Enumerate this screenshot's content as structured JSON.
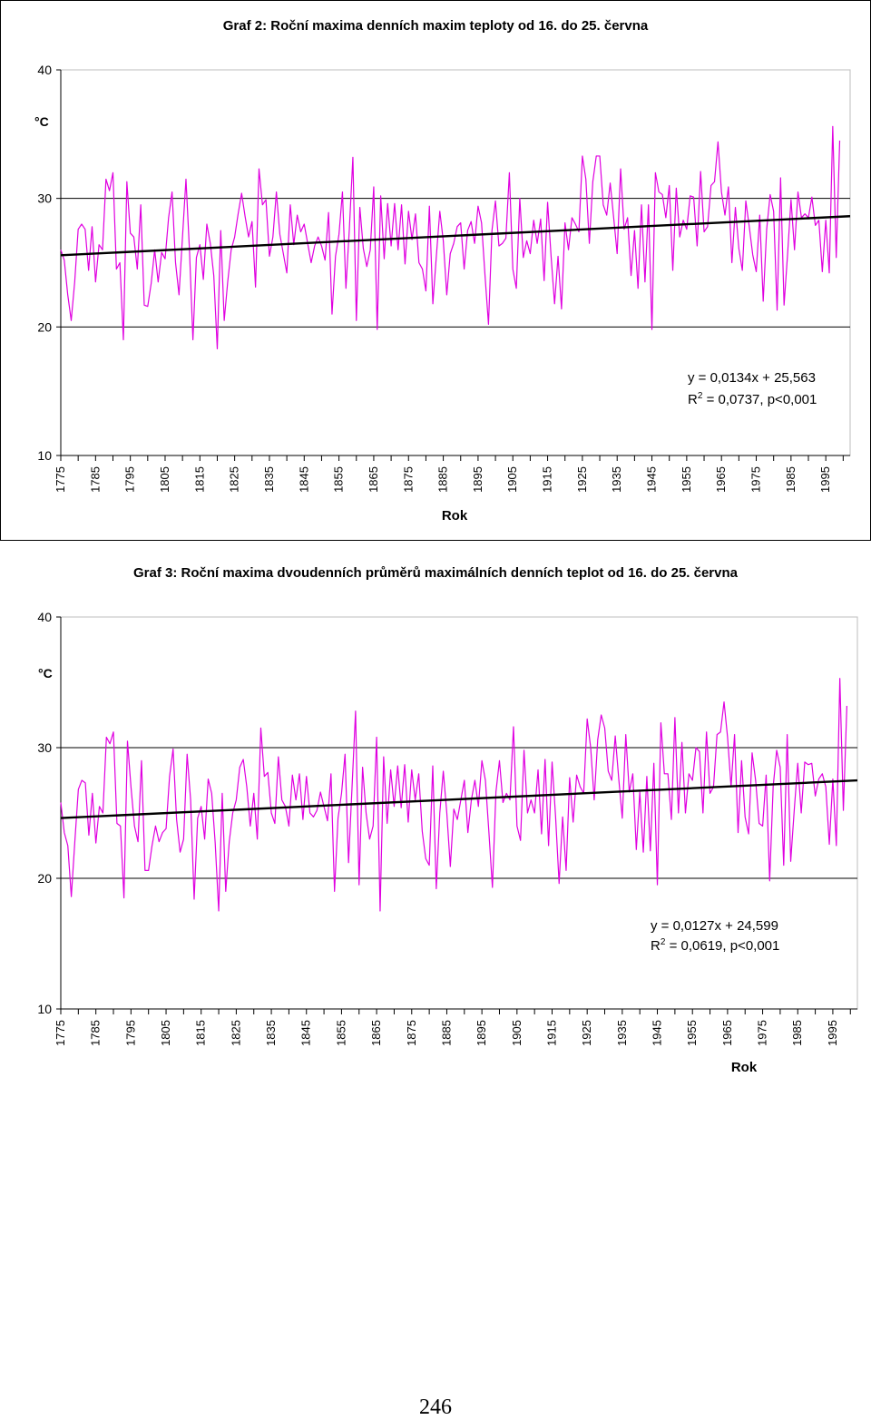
{
  "chart_data": [
    {
      "type": "line",
      "title": "Graf 2: Roční maxima denních maxim teploty od 16. do 25. června",
      "ylabel": "°C",
      "xlabel": "Rok",
      "ylim": [
        10,
        40
      ],
      "xlim": [
        1775,
        2002
      ],
      "yticks": [
        "10",
        "20",
        "30",
        "40"
      ],
      "xticks": [
        "1775",
        "1785",
        "1795",
        "1805",
        "1815",
        "1825",
        "1835",
        "1845",
        "1855",
        "1865",
        "1875",
        "1885",
        "1895",
        "1905",
        "1915",
        "1925",
        "1935",
        "1945",
        "1955",
        "1965",
        "1975",
        "1985",
        "1995"
      ],
      "grid": "horizontal at 20 and 30",
      "series": [
        {
          "color": "#e000e0",
          "x_start": 1775,
          "values": [
            26.0,
            25.2,
            22.5,
            20.5,
            23.5,
            27.6,
            28.0,
            27.6,
            24.4,
            27.8,
            23.5,
            26.4,
            26.0,
            31.5,
            30.6,
            32.0,
            24.5,
            25.0,
            19.0,
            31.3,
            27.3,
            27.0,
            24.5,
            29.5,
            21.7,
            21.6,
            23.4,
            26.0,
            23.5,
            25.8,
            25.3,
            28.5,
            30.5,
            25.0,
            22.5,
            27.0,
            31.5,
            26.0,
            19.0,
            25.4,
            26.4,
            23.7,
            28.0,
            26.5,
            24.0,
            18.3,
            27.5,
            20.5,
            23.5,
            26.0,
            27.0,
            28.8,
            30.4,
            28.6,
            27.0,
            28.2,
            23.1,
            32.3,
            29.5,
            29.9,
            25.5,
            27.0,
            30.5,
            27.2,
            25.7,
            24.2,
            29.5,
            26.4,
            28.7,
            27.4,
            28.0,
            26.5,
            25.0,
            26.3,
            27.0,
            26.3,
            25.2,
            28.9,
            21.0,
            25.5,
            27.2,
            30.5,
            23.0,
            27.7,
            33.2,
            20.5,
            29.3,
            26.1,
            24.7,
            26.0,
            30.9,
            19.8,
            30.2,
            25.3,
            29.6,
            26.3,
            29.6,
            26.0,
            29.5,
            24.9,
            29.0,
            26.8,
            28.8,
            25.0,
            24.5,
            22.8,
            29.4,
            21.8,
            25.5,
            29.0,
            26.7,
            22.5,
            25.7,
            26.5,
            27.8,
            28.1,
            24.5,
            27.5,
            28.2,
            26.5,
            29.4,
            28.1,
            24.0,
            20.2,
            27.5,
            29.8,
            26.3,
            26.5,
            26.9,
            32.0,
            24.5,
            23.0,
            30.0,
            25.4,
            26.7,
            25.7,
            28.3,
            26.5,
            28.4,
            23.6,
            29.7,
            25.5,
            21.8,
            25.5,
            21.4,
            28.1,
            26.0,
            28.5,
            28.0,
            27.4,
            33.3,
            31.5,
            26.5,
            31.3,
            33.3,
            33.3,
            29.5,
            28.7,
            31.2,
            28.5,
            25.7,
            32.3,
            27.6,
            28.5,
            24.0,
            27.5,
            23.0,
            29.5,
            23.5,
            29.5,
            19.8,
            32.0,
            30.5,
            30.3,
            28.5,
            31.0,
            24.4,
            30.8,
            27.0,
            28.3,
            27.6,
            30.2,
            30.1,
            26.3,
            32.1,
            27.4,
            27.8,
            31.0,
            31.3,
            34.4,
            30.5,
            28.7,
            30.9,
            25.0,
            29.3,
            26.1,
            24.4,
            29.8,
            27.8,
            25.6,
            24.3,
            28.7,
            22.0,
            27.6,
            30.3,
            29.0,
            21.3,
            31.6,
            21.7,
            25.6,
            29.9,
            26.0,
            30.5,
            28.5,
            28.8,
            28.5,
            30.1,
            27.9,
            28.3,
            24.3,
            28.3,
            24.2,
            35.6,
            25.4,
            34.5
          ]
        }
      ],
      "trendline": {
        "slope": 0.0134,
        "intercept": 25.563,
        "x_origin": 1774
      },
      "annotation": {
        "equation": "y = 0,0134x + 25,563",
        "r2_label": "R",
        "r2_sup": "2",
        "r2_rest": " = 0,0737, p<0,001"
      }
    },
    {
      "type": "line",
      "title": "Graf 3: Roční maxima dvoudenních průměrů maximálních denních teplot od 16. do 25. června",
      "ylabel": "°C",
      "xlabel": "Rok",
      "ylim": [
        10,
        40
      ],
      "xlim": [
        1775,
        2002
      ],
      "yticks": [
        "10",
        "20",
        "30",
        "40"
      ],
      "xticks": [
        "1775",
        "1785",
        "1795",
        "1805",
        "1815",
        "1825",
        "1835",
        "1845",
        "1855",
        "1865",
        "1875",
        "1885",
        "1895",
        "1905",
        "1915",
        "1925",
        "1935",
        "1945",
        "1955",
        "1965",
        "1975",
        "1985",
        "1995"
      ],
      "grid": "horizontal at 20 and 30",
      "series": [
        {
          "color": "#e000e0",
          "x_start": 1775,
          "values": [
            25.8,
            23.5,
            22.5,
            18.6,
            22.8,
            26.8,
            27.5,
            27.3,
            23.3,
            26.5,
            22.7,
            25.5,
            25.0,
            30.8,
            30.3,
            31.2,
            24.2,
            24.0,
            18.5,
            30.5,
            27.0,
            24.0,
            22.8,
            29.0,
            20.6,
            20.6,
            22.5,
            24.0,
            22.8,
            23.5,
            23.8,
            27.8,
            29.9,
            24.5,
            22.0,
            23.0,
            29.5,
            26.0,
            18.4,
            24.6,
            25.5,
            23.0,
            27.6,
            26.5,
            22.7,
            17.5,
            26.5,
            19.0,
            22.8,
            25.0,
            26.0,
            28.5,
            29.1,
            27.0,
            24.0,
            26.5,
            23.0,
            31.5,
            27.8,
            28.1,
            25.0,
            24.2,
            29.3,
            26.0,
            25.5,
            24.0,
            27.9,
            26.0,
            28.0,
            24.5,
            27.8,
            25.0,
            24.7,
            25.2,
            26.6,
            25.5,
            24.4,
            28.0,
            19.0,
            24.6,
            26.5,
            29.5,
            21.2,
            27.0,
            32.8,
            19.5,
            28.5,
            25.0,
            23.0,
            24.0,
            30.8,
            17.5,
            29.3,
            24.2,
            28.3,
            25.5,
            28.6,
            25.4,
            28.7,
            24.3,
            28.3,
            26.0,
            28.0,
            23.6,
            21.5,
            21.0,
            28.6,
            19.2,
            25.0,
            28.2,
            25.0,
            20.9,
            25.3,
            24.5,
            26.0,
            27.5,
            23.5,
            26.0,
            27.5,
            25.5,
            29.0,
            27.5,
            23.5,
            19.3,
            26.6,
            29.0,
            25.8,
            26.5,
            26.0,
            31.6,
            24.0,
            22.9,
            29.8,
            25.0,
            26.0,
            25.0,
            28.3,
            23.4,
            29.1,
            22.5,
            28.9,
            24.7,
            19.6,
            24.7,
            20.6,
            27.7,
            24.3,
            27.9,
            27.0,
            26.5,
            32.2,
            30.0,
            26.0,
            30.6,
            32.5,
            31.5,
            28.2,
            27.5,
            30.9,
            27.6,
            24.6,
            31.0,
            26.6,
            28.0,
            22.2,
            26.6,
            22.0,
            27.8,
            22.1,
            28.8,
            19.5,
            31.9,
            28.0,
            28.0,
            24.5,
            32.3,
            25.0,
            30.4,
            25.0,
            28.0,
            27.5,
            30.0,
            29.7,
            25.0,
            31.2,
            26.5,
            27.0,
            31.0,
            31.2,
            33.5,
            30.8,
            27.0,
            31.0,
            23.5,
            29.0,
            24.7,
            23.4,
            29.6,
            27.5,
            24.2,
            24.0,
            27.9,
            19.8,
            27.0,
            29.8,
            28.5,
            21.0,
            31.0,
            21.3,
            25.2,
            28.8,
            25.0,
            28.9,
            28.7,
            28.8,
            26.3,
            27.6,
            28.0,
            27.0,
            22.6,
            27.6,
            22.5,
            35.3,
            25.2,
            33.2
          ]
        }
      ],
      "trendline": {
        "slope": 0.0127,
        "intercept": 24.599,
        "x_origin": 1774
      },
      "annotation": {
        "equation": "y = 0,0127x + 24,599",
        "r2_label": "R",
        "r2_sup": "2",
        "r2_rest": " = 0,0619, p<0,001"
      }
    }
  ],
  "page_number": "246"
}
